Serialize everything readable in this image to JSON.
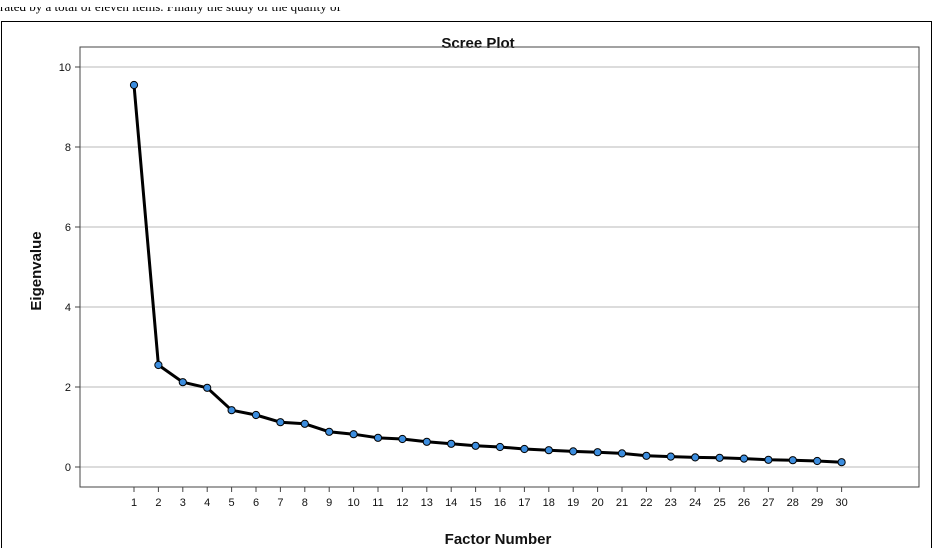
{
  "caption": "rated by a total of eleven items. Finally the study of the quality of ",
  "chart_data": {
    "type": "line",
    "title": "Scree Plot",
    "xlabel": "Factor Number",
    "ylabel": "Eigenvalue",
    "x": [
      1,
      2,
      3,
      4,
      5,
      6,
      7,
      8,
      9,
      10,
      11,
      12,
      13,
      14,
      15,
      16,
      17,
      18,
      19,
      20,
      21,
      22,
      23,
      24,
      25,
      26,
      27,
      28,
      29,
      30
    ],
    "x_tick_labels": [
      "1",
      "2",
      "3",
      "4",
      "5",
      "6",
      "7",
      "8",
      "9",
      "10",
      "11",
      "12",
      "13",
      "14",
      "15",
      "16",
      "17",
      "18",
      "19",
      "20",
      "21",
      "22",
      "23",
      "24",
      "25",
      "26",
      "27",
      "28",
      "29",
      "30"
    ],
    "values": [
      9.55,
      2.55,
      2.12,
      1.98,
      1.42,
      1.3,
      1.12,
      1.08,
      0.88,
      0.82,
      0.73,
      0.7,
      0.63,
      0.58,
      0.53,
      0.5,
      0.45,
      0.42,
      0.39,
      0.37,
      0.34,
      0.28,
      0.26,
      0.24,
      0.23,
      0.21,
      0.18,
      0.17,
      0.15,
      0.12
    ],
    "ylim": [
      -0.5,
      10.5
    ],
    "y_ticks": [
      0,
      2,
      4,
      6,
      8,
      10
    ],
    "y_tick_labels": [
      "0",
      "2",
      "4",
      "6",
      "8",
      "10"
    ],
    "grid": "horizontal",
    "line_color": "#000000",
    "marker_color": "#3c8dde"
  }
}
